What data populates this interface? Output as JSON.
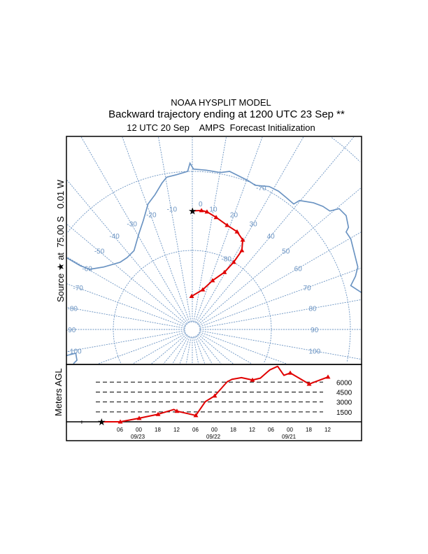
{
  "header": {
    "model": "NOAA HYSPLIT MODEL",
    "title": "Backward trajectory ending at 1200 UTC 23 Sep **",
    "subtitle": "12 UTC 20 Sep    AMPS  Forecast Initialization"
  },
  "chart_data": [
    {
      "type": "line",
      "panel": "map",
      "projection": "south polar stereographic",
      "ylabel": "Source ★ at  75.00 S   0.01 W",
      "source": {
        "lat": -75.0,
        "lon": -0.01
      },
      "latitude_circles": [
        -80,
        -70,
        -60,
        -50
      ],
      "latitude_labels": [
        "-70",
        "-80"
      ],
      "longitude_labels": [
        "-100",
        "-90",
        "-80",
        "-70",
        "-60",
        "-50",
        "-40",
        "-30",
        "-20",
        "-10",
        "0",
        "10",
        "20",
        "30",
        "40",
        "50",
        "60",
        "70",
        "80",
        "90",
        "100"
      ],
      "grid_color": "#6a93c2",
      "coastline_color": "#6a93c2",
      "series": [
        {
          "color": "#e00000",
          "marker": "triangle",
          "hours_back": [
            0,
            6,
            12,
            18,
            24,
            30,
            36,
            42,
            48,
            54,
            60,
            66,
            72
          ],
          "lat": [
            -75.0,
            -74.9,
            -75.0,
            -75.5,
            -76.1,
            -76.4,
            -77.0,
            -78.2,
            -80.0,
            -81.7,
            -83.3,
            -84.8,
            -85.8
          ],
          "lon": [
            0.0,
            4.4,
            7.1,
            12.0,
            18.5,
            24.6,
            29.4,
            32.1,
            31.6,
            29.3,
            22.5,
            14.7,
            -1.2
          ]
        }
      ]
    },
    {
      "type": "line",
      "panel": "height",
      "ylabel": "Meters AGL",
      "ylim": [
        0,
        9000
      ],
      "reference_levels": [
        "6000",
        "4500",
        "3000",
        "1500"
      ],
      "x_tick_labels": [
        "06",
        "00",
        "18",
        "12",
        "06",
        "00",
        "18",
        "12",
        "06",
        "00",
        "18",
        "12"
      ],
      "date_labels": [
        "09/23",
        "09/22",
        "09/21"
      ],
      "series": [
        {
          "color": "#e00000",
          "hours_back": [
            0,
            6,
            12,
            18,
            23,
            24,
            30,
            33,
            36,
            40,
            41.5,
            44.5,
            48,
            50.5,
            53.5,
            56,
            58,
            60,
            66,
            72
          ],
          "height_m": [
            0,
            0,
            540,
            1140,
            1860,
            1610,
            960,
            3040,
            3930,
            6070,
            6430,
            6680,
            6320,
            6600,
            7850,
            8390,
            7030,
            7390,
            5710,
            6780
          ]
        }
      ]
    }
  ]
}
